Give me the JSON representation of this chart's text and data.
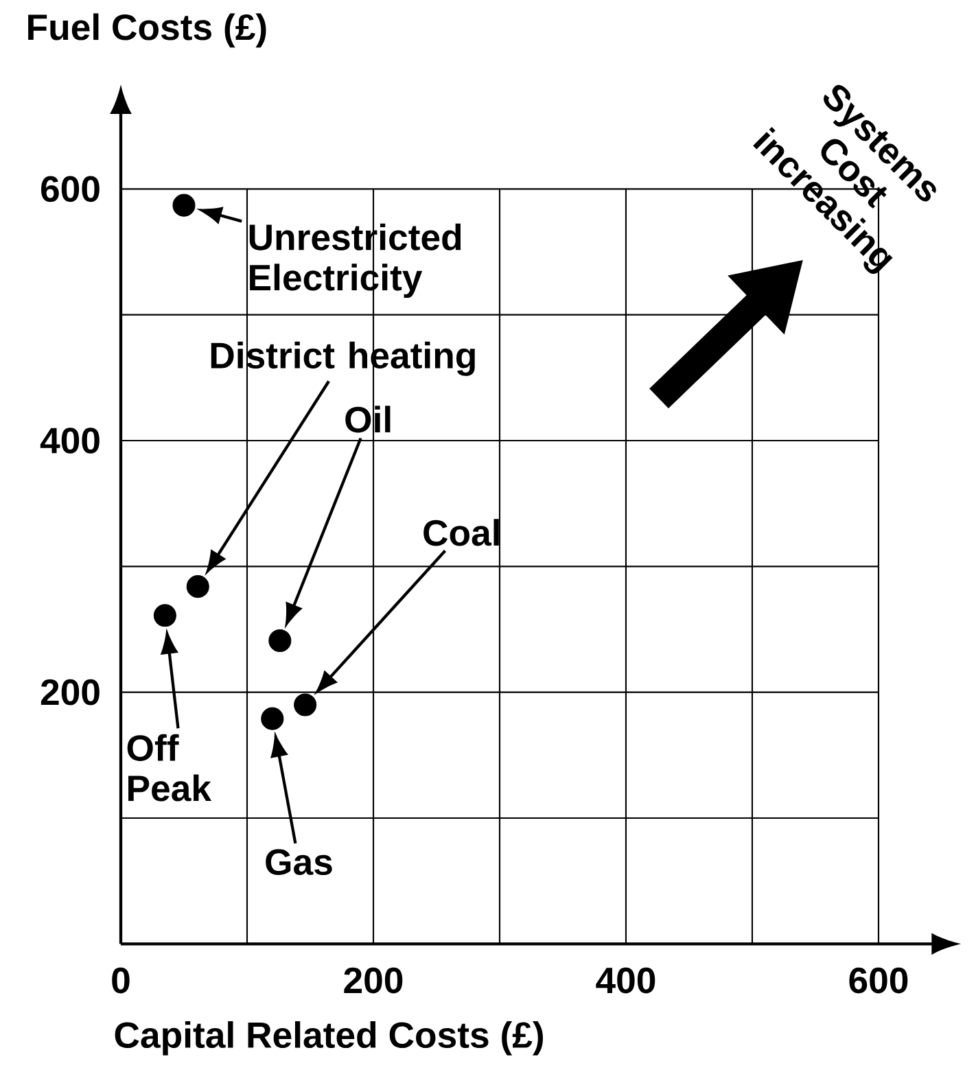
{
  "chart_data": {
    "type": "scatter",
    "xlabel": "Capital Related Costs (£)",
    "ylabel": "Fuel Costs (£)",
    "x": [
      50,
      61,
      126,
      146,
      120,
      35
    ],
    "values": [
      587,
      284,
      241,
      190,
      179,
      261
    ],
    "color": "#000000",
    "marker": "circle",
    "xlim": [
      0,
      600
    ],
    "ylim": [
      0,
      600
    ],
    "xticks": [
      0,
      {
        "value": 100,
        "label": null
      },
      200,
      {
        "value": 300,
        "label": null
      },
      400,
      {
        "value": 500,
        "label": null
      },
      600
    ],
    "yticks": [
      {
        "value": 100,
        "label": null
      },
      200,
      {
        "value": 300,
        "label": null
      },
      400,
      {
        "value": 500,
        "label": null
      },
      600
    ],
    "grid": true,
    "annotations": [
      "Unrestricted Electricity",
      "District heating",
      "Oil",
      "Coal",
      "Gas",
      "Off Peak",
      "Systems Cost increasing"
    ]
  }
}
